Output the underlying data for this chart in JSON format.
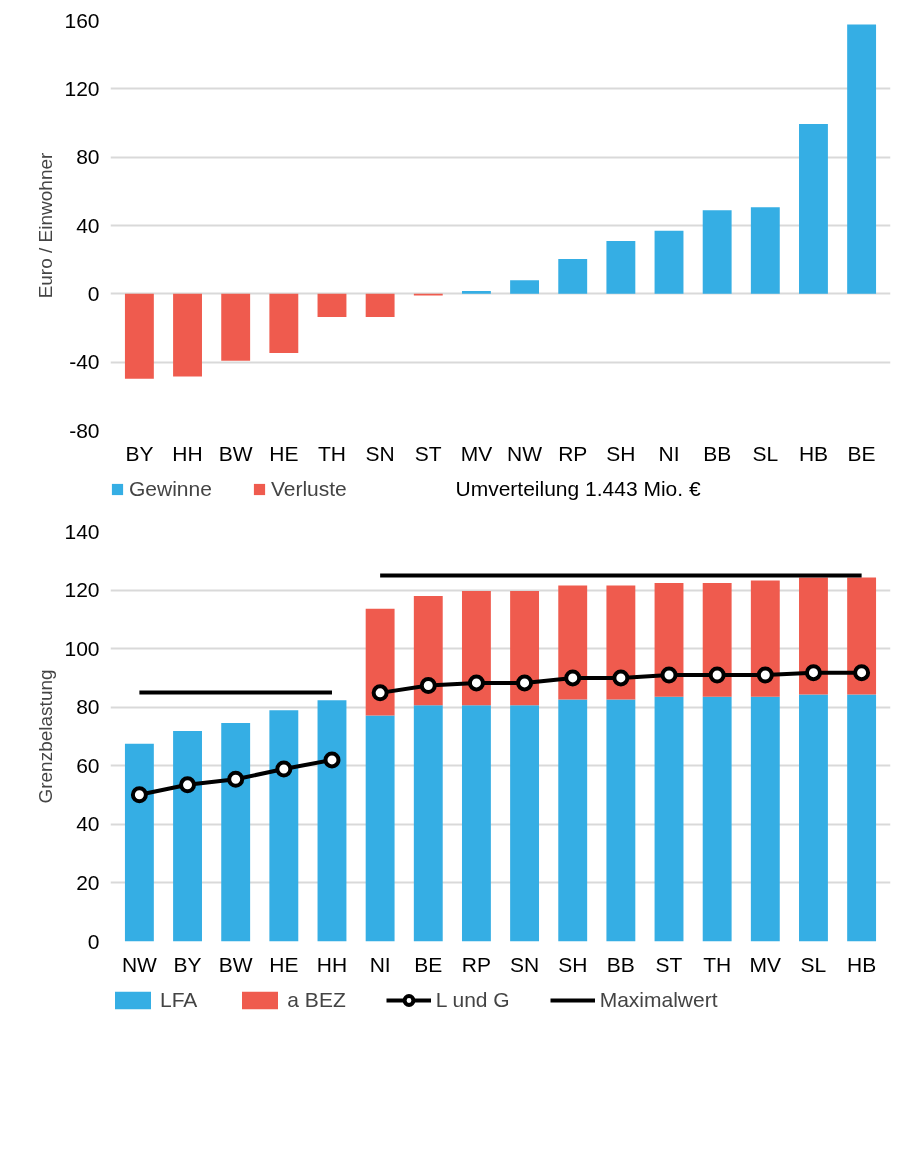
{
  "chart_data": [
    {
      "type": "bar",
      "ylabel": "Euro / Einwohner",
      "categories": [
        "BY",
        "HH",
        "BW",
        "HE",
        "TH",
        "SN",
        "ST",
        "MV",
        "NW",
        "RP",
        "SH",
        "NI",
        "BB",
        "SL",
        "HB",
        "BE"
      ],
      "series": [
        {
          "name": "Gewinne",
          "color": "#35aee4",
          "values": [
            null,
            null,
            null,
            null,
            null,
            null,
            null,
            1.6,
            7.9,
            20.4,
            30.9,
            36.9,
            49,
            50.7,
            99.4,
            157.7
          ]
        },
        {
          "name": "Verluste",
          "color": "#ef5b4e",
          "values": [
            -49.7,
            -48.4,
            -39.2,
            -34.6,
            -13.5,
            -13.5,
            -1,
            null,
            null,
            null,
            null,
            null,
            null,
            null,
            null,
            null
          ]
        }
      ],
      "ylim": [
        -80,
        160
      ],
      "yticks": [
        -80,
        -40,
        0,
        40,
        80,
        120,
        160
      ],
      "grid": "y",
      "legend": "bottom",
      "annotations": [
        "Umverteilung 1.443 Mio. €"
      ]
    },
    {
      "type": "bar",
      "stacked": true,
      "ylabel": "Grenzbelastung",
      "categories": [
        "NW",
        "BY",
        "BW",
        "HE",
        "HH",
        "NI",
        "BE",
        "RP",
        "SN",
        "SH",
        "BB",
        "ST",
        "TH",
        "MV",
        "SL",
        "HB"
      ],
      "series": [
        {
          "name": "LFA",
          "color": "#35aee4",
          "values": [
            67.5,
            71.9,
            74.6,
            79,
            82.4,
            77.2,
            80.7,
            80.7,
            80.7,
            82.6,
            82.6,
            83.6,
            83.6,
            83.6,
            84.3,
            84.3
          ]
        },
        {
          "name": "a BEZ",
          "color": "#ef5b4e",
          "values": [
            null,
            null,
            null,
            null,
            null,
            36.4,
            37.3,
            39,
            39,
            39,
            39,
            38.8,
            38.8,
            39.7,
            40,
            40
          ]
        },
        {
          "name": "L und G",
          "type": "line",
          "color": "#000000",
          "marker": "circle",
          "values": [
            50.1,
            53.5,
            55.4,
            58.9,
            62,
            null,
            null,
            null,
            null,
            null,
            null,
            null,
            null,
            null,
            null,
            null
          ]
        },
        {
          "type": "line",
          "color": "#000000",
          "marker": "circle",
          "values": [
            null,
            null,
            null,
            null,
            null,
            84.9,
            87.4,
            88.3,
            88.3,
            90,
            90,
            91,
            91,
            91,
            91.8,
            91.8
          ]
        },
        {
          "name": "Maximalwert",
          "type": "line",
          "color": "#000000",
          "values": [
            85,
            85,
            85,
            85,
            85,
            null,
            null,
            null,
            null,
            null,
            null,
            null,
            null,
            null,
            null,
            null
          ]
        },
        {
          "type": "line",
          "color": "#000000",
          "values": [
            null,
            null,
            null,
            null,
            null,
            125,
            125,
            125,
            125,
            125,
            125,
            125,
            125,
            125,
            125,
            125
          ]
        }
      ],
      "ylim": [
        0,
        140
      ],
      "yticks": [
        0,
        20,
        40,
        60,
        80,
        100,
        120,
        140
      ],
      "grid": "y",
      "legend": "bottom"
    }
  ]
}
